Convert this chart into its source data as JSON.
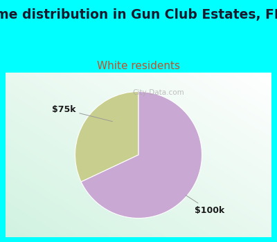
{
  "title": "Income distribution in Gun Club Estates, FL (%)",
  "subtitle": "White residents",
  "slices": [
    0.32,
    0.68
  ],
  "labels": [
    "$75k",
    "$100k"
  ],
  "colors": [
    "#c8cf8e",
    "#c9a8d4"
  ],
  "startangle": 90,
  "background_top": "#00ffff",
  "title_fontsize": 13.5,
  "subtitle_fontsize": 11,
  "subtitle_color": "#c0522a",
  "title_color": "#1a1a2e",
  "watermark": "City-Data.com",
  "annotation_color": "#888888"
}
